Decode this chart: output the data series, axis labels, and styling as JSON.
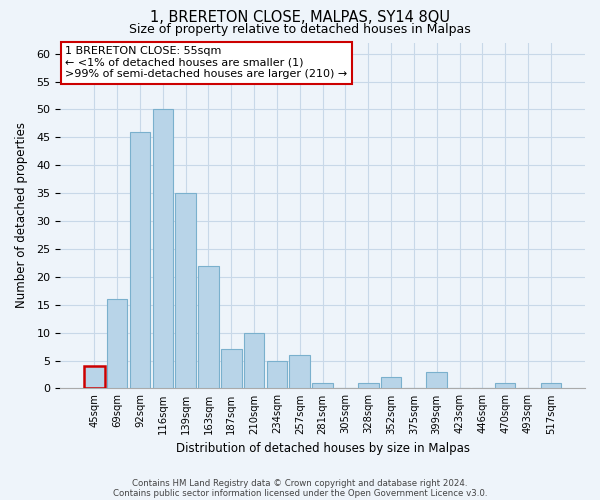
{
  "title": "1, BRERETON CLOSE, MALPAS, SY14 8QU",
  "subtitle": "Size of property relative to detached houses in Malpas",
  "xlabel": "Distribution of detached houses by size in Malpas",
  "ylabel": "Number of detached properties",
  "bar_color": "#b8d4e8",
  "bar_edge_color": "#7ab0cd",
  "highlight_bar_edge_color": "#cc0000",
  "bins": [
    "45sqm",
    "69sqm",
    "92sqm",
    "116sqm",
    "139sqm",
    "163sqm",
    "187sqm",
    "210sqm",
    "234sqm",
    "257sqm",
    "281sqm",
    "305sqm",
    "328sqm",
    "352sqm",
    "375sqm",
    "399sqm",
    "423sqm",
    "446sqm",
    "470sqm",
    "493sqm",
    "517sqm"
  ],
  "values": [
    4,
    16,
    46,
    50,
    35,
    22,
    7,
    10,
    5,
    6,
    1,
    0,
    1,
    2,
    0,
    3,
    0,
    0,
    1,
    0,
    1
  ],
  "highlight_index": 0,
  "ylim": [
    0,
    62
  ],
  "yticks": [
    0,
    5,
    10,
    15,
    20,
    25,
    30,
    35,
    40,
    45,
    50,
    55,
    60
  ],
  "annotation_title": "1 BRERETON CLOSE: 55sqm",
  "annotation_line1": "← <1% of detached houses are smaller (1)",
  "annotation_line2": ">99% of semi-detached houses are larger (210) →",
  "footer1": "Contains HM Land Registry data © Crown copyright and database right 2024.",
  "footer2": "Contains public sector information licensed under the Open Government Licence v3.0.",
  "background_color": "#eef4fa",
  "grid_color": "#c8d8e8"
}
